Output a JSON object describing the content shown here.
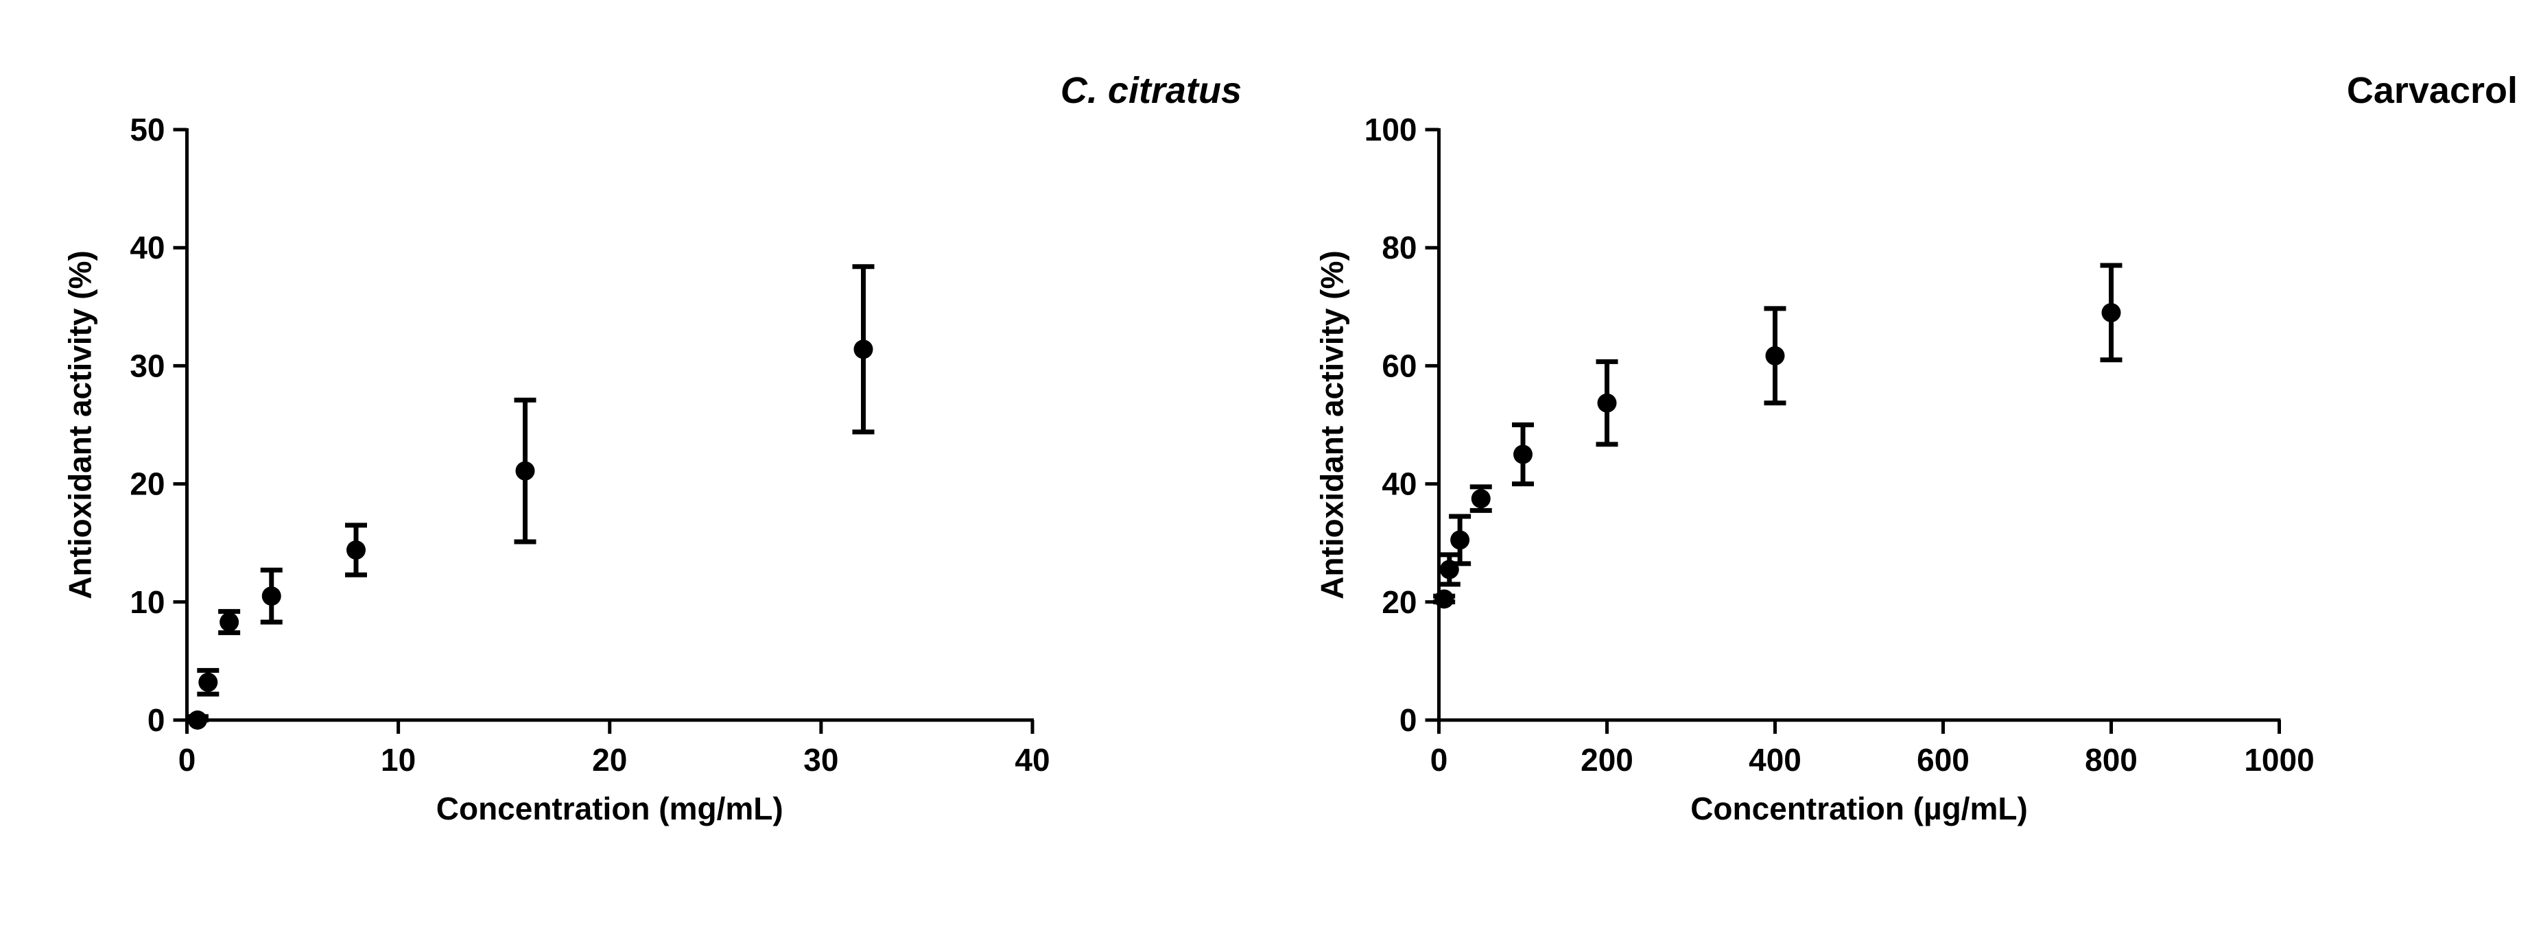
{
  "chart_data": [
    {
      "type": "scatter",
      "title": "C. citratus",
      "title_italic": true,
      "xlabel": "Concentration (mg/mL)",
      "ylabel": "Antioxidant activity (%)",
      "xlim": [
        0,
        40
      ],
      "ylim": [
        0,
        50
      ],
      "xticks": [
        0,
        10,
        20,
        30,
        40
      ],
      "yticks": [
        0,
        10,
        20,
        30,
        40,
        50
      ],
      "grid": false,
      "error_bars": true,
      "series": [
        {
          "x": [
            0.5,
            1,
            2,
            4,
            8,
            16,
            32
          ],
          "y": [
            0,
            3.2,
            8.3,
            10.5,
            14.4,
            21.1,
            31.4
          ],
          "err": [
            0.3,
            1.0,
            0.9,
            2.2,
            2.1,
            6.0,
            7.0
          ]
        }
      ]
    },
    {
      "type": "scatter",
      "title": "Carvacrol",
      "title_italic": false,
      "xlabel": "Concentration (µg/mL)",
      "ylabel": "Antioxidant activity (%)",
      "xlim": [
        0,
        1000
      ],
      "ylim": [
        0,
        100
      ],
      "xticks": [
        0,
        200,
        400,
        600,
        800,
        1000
      ],
      "yticks": [
        0,
        20,
        40,
        60,
        80,
        100
      ],
      "grid": false,
      "error_bars": true,
      "series": [
        {
          "x": [
            6.25,
            12.5,
            25,
            50,
            100,
            200,
            400,
            800
          ],
          "y": [
            20.5,
            25.5,
            30.5,
            37.5,
            45,
            53.7,
            61.7,
            69
          ],
          "err": [
            0.5,
            2.5,
            4.0,
            2.0,
            5.0,
            7.0,
            8.0,
            8.0
          ]
        }
      ]
    }
  ]
}
